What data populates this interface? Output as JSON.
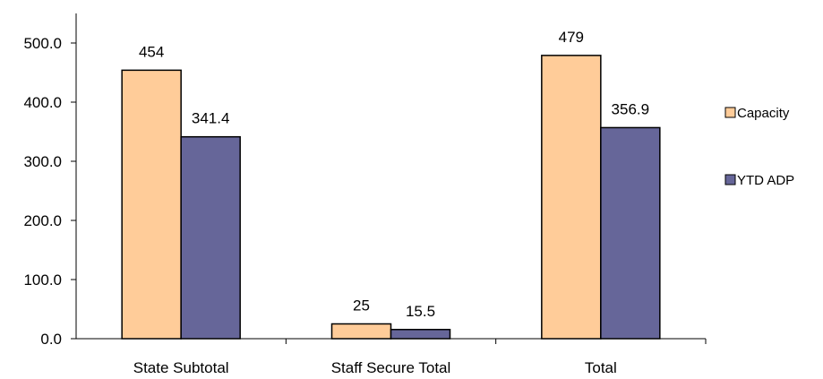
{
  "chart_data": {
    "type": "bar",
    "categories": [
      "State Subtotal",
      "Staff Secure Total",
      "Total"
    ],
    "series": [
      {
        "name": "Capacity",
        "values": [
          454,
          25,
          479
        ],
        "labels": [
          "454",
          "25",
          "479"
        ],
        "color": "#FFCC99"
      },
      {
        "name": "YTD ADP",
        "values": [
          341.4,
          15.5,
          356.9
        ],
        "labels": [
          "341.4",
          "15.5",
          "356.9"
        ],
        "color": "#666699"
      }
    ],
    "y_ticks": [
      "0.0",
      "100.0",
      "200.0",
      "300.0",
      "400.0",
      "500.0"
    ],
    "ylim": [
      0,
      500
    ],
    "grid": false,
    "legend_position": "right"
  }
}
